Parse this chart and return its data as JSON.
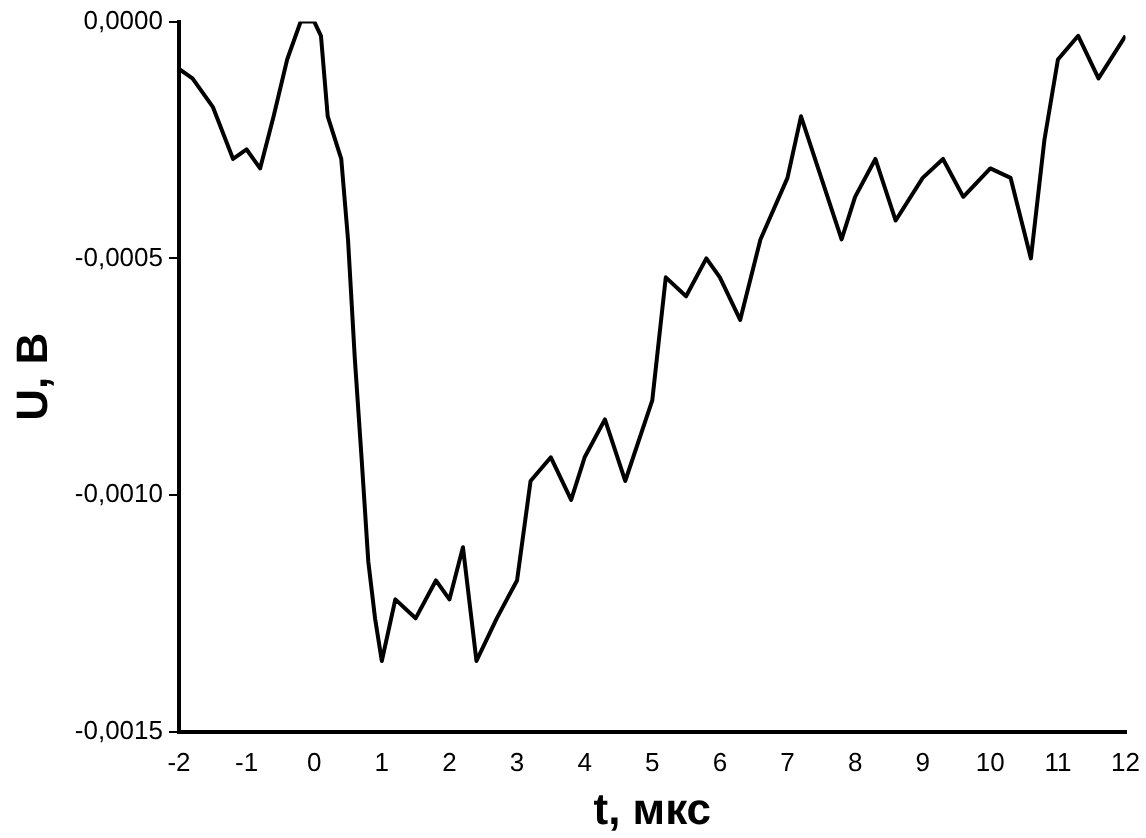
{
  "chart_data": {
    "type": "line",
    "xlabel": "t, мкс",
    "ylabel": "U, В",
    "x": [
      -2,
      -1.8,
      -1.5,
      -1.2,
      -1,
      -0.8,
      -0.6,
      -0.4,
      -0.2,
      0,
      0.1,
      0.2,
      0.4,
      0.5,
      0.6,
      0.7,
      0.8,
      0.9,
      1,
      1.2,
      1.5,
      1.8,
      2,
      2.2,
      2.4,
      2.7,
      3,
      3.2,
      3.5,
      3.8,
      4,
      4.3,
      4.6,
      5,
      5.2,
      5.5,
      5.8,
      6,
      6.3,
      6.6,
      7,
      7.2,
      7.5,
      7.8,
      8,
      8.3,
      8.6,
      9,
      9.3,
      9.6,
      10,
      10.3,
      10.6,
      10.8,
      11,
      11.3,
      11.6,
      12
    ],
    "series": [
      {
        "color": "#000000",
        "values": [
          -0.0001,
          -0.00012,
          -0.00018,
          -0.00029,
          -0.00027,
          -0.00031,
          -0.0002,
          -8e-05,
          0,
          0,
          -3e-05,
          -0.0002,
          -0.00029,
          -0.00046,
          -0.00071,
          -0.00092,
          -0.00114,
          -0.00126,
          -0.00135,
          -0.00122,
          -0.00126,
          -0.00118,
          -0.00122,
          -0.00111,
          -0.00135,
          -0.00126,
          -0.00118,
          -0.00097,
          -0.00092,
          -0.00101,
          -0.00092,
          -0.00084,
          -0.00097,
          -0.0008,
          -0.00054,
          -0.00058,
          -0.0005,
          -0.00054,
          -0.00063,
          -0.00046,
          -0.00033,
          -0.0002,
          -0.00033,
          -0.00046,
          -0.00037,
          -0.00029,
          -0.00042,
          -0.00033,
          -0.00029,
          -0.00037,
          -0.00031,
          -0.00033,
          -0.0005,
          -0.00025,
          -8e-05,
          -3e-05,
          -0.00012,
          -3e-05
        ]
      }
    ],
    "xlim": [
      -2,
      12
    ],
    "xticks": [
      -2,
      -1,
      0,
      1,
      2,
      3,
      4,
      5,
      6,
      7,
      8,
      9,
      10,
      11,
      12
    ],
    "ylim": [
      -0.0015,
      0
    ],
    "yticks": [
      {
        "value": -0.0015,
        "label": "-0,0015"
      },
      {
        "value": -0.001,
        "label": "-0,0010"
      },
      {
        "value": -0.0005,
        "label": "-0,0005"
      },
      {
        "value": 0,
        "label": "0,0000"
      }
    ],
    "grid": false,
    "legend": false,
    "marker": "none",
    "line_style": "solid"
  }
}
